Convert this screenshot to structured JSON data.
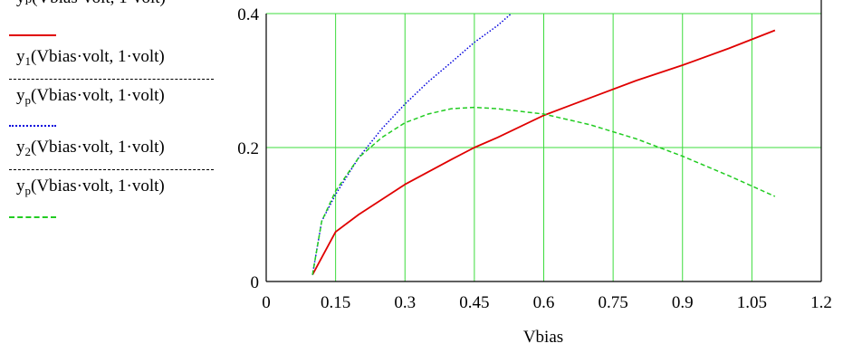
{
  "chart_data": {
    "type": "line",
    "xlabel": "Vbias",
    "xlim": [
      0,
      1.2
    ],
    "ylim": [
      0,
      0.4
    ],
    "x_ticks": [
      "0",
      "0.15",
      "0.3",
      "0.45",
      "0.6",
      "0.75",
      "0.9",
      "1.05",
      "1.2"
    ],
    "y_ticks": [
      "0",
      "0.2",
      "0.4"
    ],
    "grid": true,
    "grid_color": "#3ddc3d",
    "series": [
      {
        "name_main": "y",
        "name_sub": "1",
        "name_args": "(Vbias·volt, 1·volt)",
        "color": "#e00000",
        "dash": "solid",
        "x": [
          0.1,
          0.15,
          0.2,
          0.3,
          0.4,
          0.45,
          0.5,
          0.6,
          0.7,
          0.8,
          0.9,
          1.0,
          1.1
        ],
        "y": [
          0.01,
          0.074,
          0.1,
          0.145,
          0.182,
          0.2,
          0.215,
          0.248,
          0.274,
          0.3,
          0.323,
          0.348,
          0.375
        ]
      },
      {
        "name_main": "y",
        "name_sub": "p",
        "name_args": "(Vbias·volt, 1·volt)",
        "color": "#0000dd",
        "dash": "dotted",
        "x": [
          0.1,
          0.12,
          0.15,
          0.2,
          0.25,
          0.3,
          0.35,
          0.4,
          0.45,
          0.5,
          0.53
        ],
        "y": [
          0.01,
          0.09,
          0.13,
          0.185,
          0.228,
          0.265,
          0.298,
          0.327,
          0.357,
          0.382,
          0.4
        ]
      },
      {
        "name_main": "y",
        "name_sub": "2",
        "name_args": "(Vbias·volt, 1·volt)",
        "color": "#22cc22",
        "dash": "dashed",
        "x": [
          0.1,
          0.12,
          0.15,
          0.2,
          0.25,
          0.3,
          0.35,
          0.4,
          0.45,
          0.5,
          0.6,
          0.7,
          0.8,
          0.9,
          1.0,
          1.1
        ],
        "y": [
          0.01,
          0.09,
          0.135,
          0.185,
          0.215,
          0.237,
          0.25,
          0.258,
          0.26,
          0.258,
          0.25,
          0.234,
          0.213,
          0.187,
          0.158,
          0.127
        ]
      }
    ],
    "legend_top_label": "yₚ(Vbias·volt, 1·volt)"
  }
}
